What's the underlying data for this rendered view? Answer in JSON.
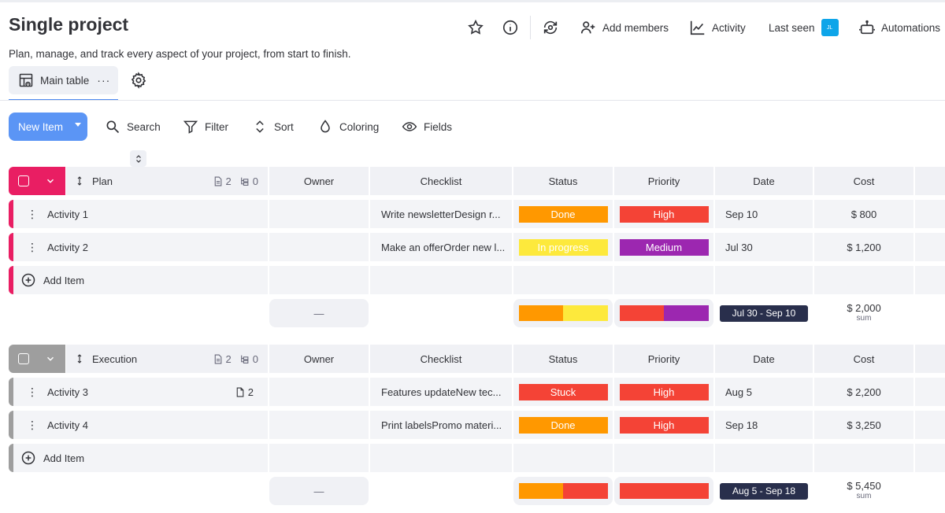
{
  "page": {
    "title": "Single project",
    "description": "Plan, manage, and track every aspect of your project, from start to finish."
  },
  "header": {
    "add_members": "Add members",
    "activity": "Activity",
    "last_seen": "Last seen",
    "avatar_initials": "JL",
    "automations": "Automations"
  },
  "views": {
    "main_table": "Main table",
    "more": "···"
  },
  "toolbar": {
    "new_item": "New Item",
    "search": "Search",
    "filter": "Filter",
    "sort": "Sort",
    "coloring": "Coloring",
    "fields": "Fields"
  },
  "columns": {
    "owner": "Owner",
    "checklist": "Checklist",
    "status": "Status",
    "priority": "Priority",
    "date": "Date",
    "cost": "Cost"
  },
  "colors": {
    "done": "#ff9800",
    "in_progress": "#fde93c",
    "stuck": "#f44336",
    "high": "#f44336",
    "medium": "#9c27b0",
    "plan_group": "#e91e63",
    "execution_group": "#9e9e9e"
  },
  "groups": [
    {
      "name": "Plan",
      "doc_count": "2",
      "sub_count": "0",
      "add_item": "Add Item",
      "rows": [
        {
          "name": "Activity 1",
          "files": "",
          "checklist": "Write newsletterDesign r...",
          "status": "Done",
          "priority": "High",
          "date": "Sep 10",
          "cost": "$ 800"
        },
        {
          "name": "Activity 2",
          "files": "",
          "checklist": "Make an offerOrder new l...",
          "status": "In progress",
          "priority": "Medium",
          "date": "Jul 30",
          "cost": "$ 1,200"
        }
      ],
      "summary": {
        "owner": "—",
        "date_range": "Jul 30 - Sep 10",
        "cost": "$ 2,000",
        "cost_label": "sum"
      }
    },
    {
      "name": "Execution",
      "doc_count": "2",
      "sub_count": "0",
      "add_item": "Add Item",
      "rows": [
        {
          "name": "Activity 3",
          "files": "2",
          "checklist": "Features updateNew tec...",
          "status": "Stuck",
          "priority": "High",
          "date": "Aug 5",
          "cost": "$ 2,200"
        },
        {
          "name": "Activity 4",
          "files": "",
          "checklist": "Print labelsPromo materi...",
          "status": "Done",
          "priority": "High",
          "date": "Sep 18",
          "cost": "$ 3,250"
        }
      ],
      "summary": {
        "owner": "—",
        "date_range": "Aug 5 - Sep 18",
        "cost": "$ 5,450",
        "cost_label": "sum"
      }
    }
  ]
}
